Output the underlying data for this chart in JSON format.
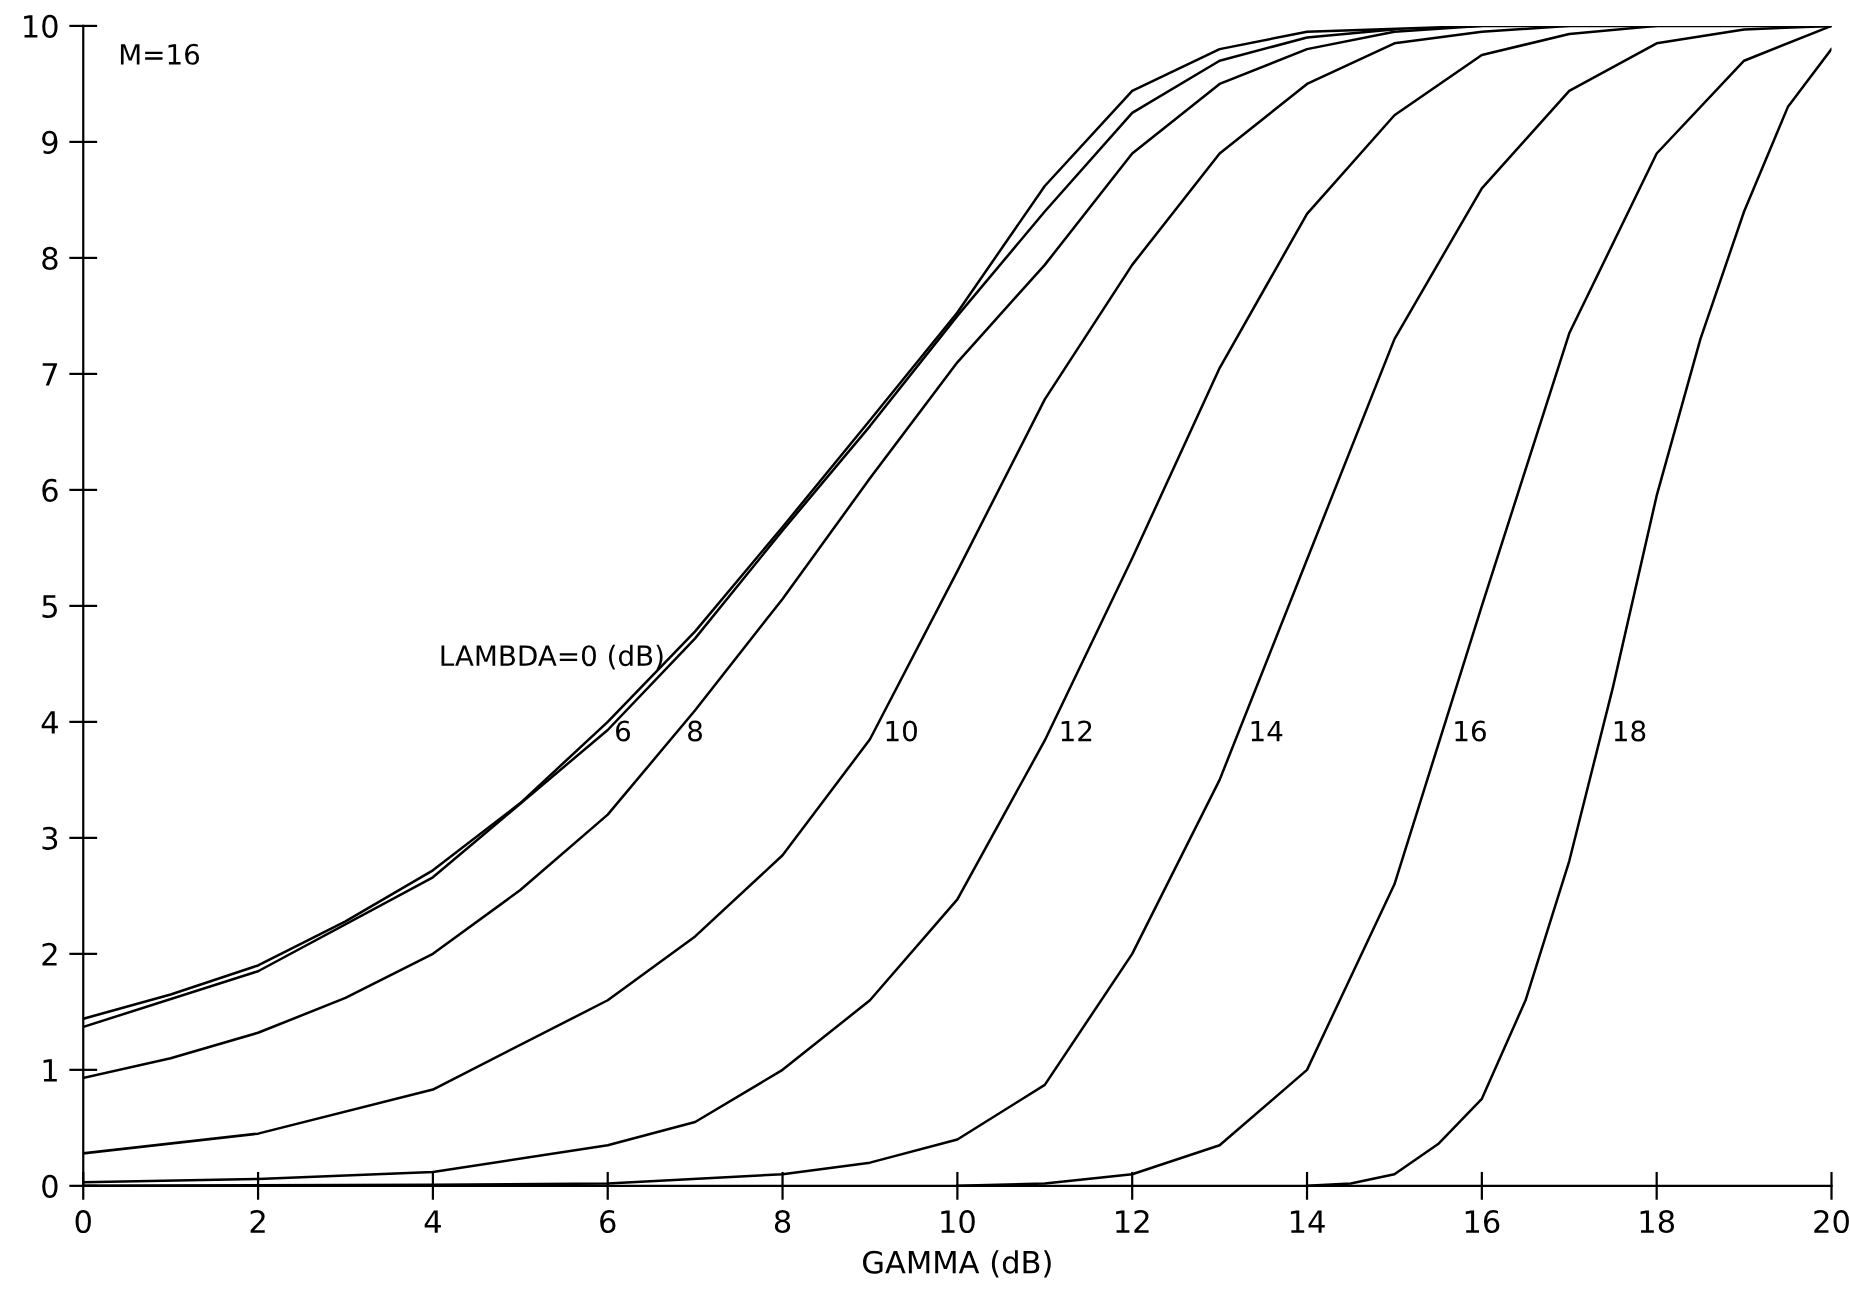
{
  "chart_data": {
    "type": "line",
    "xlabel": "GAMMA (dB)",
    "xlim": [
      0,
      20
    ],
    "ylim": [
      0,
      10
    ],
    "xticks": [
      0,
      2,
      4,
      6,
      8,
      10,
      12,
      14,
      16,
      18,
      20
    ],
    "yticks": [
      0,
      1,
      2,
      3,
      4,
      5,
      6,
      7,
      8,
      9,
      10
    ],
    "grid": false,
    "legend": false,
    "marker": "none",
    "line_style": "solid",
    "series": [
      {
        "name": "LAMBDA=0 (dB)",
        "color": "#000000",
        "x": [
          0,
          1,
          2,
          3,
          4,
          5,
          6,
          7,
          8,
          9,
          10,
          11,
          12,
          13,
          14,
          16,
          20
        ],
        "values": [
          1.44,
          1.65,
          1.9,
          2.28,
          2.72,
          3.3,
          4.0,
          4.78,
          5.68,
          6.6,
          7.53,
          8.62,
          9.44,
          9.8,
          9.95,
          10,
          10
        ]
      },
      {
        "name": "6",
        "color": "#000000",
        "x": [
          0,
          2,
          4,
          6,
          7,
          8,
          9,
          10,
          11,
          12,
          13,
          14,
          15
        ],
        "values": [
          1.37,
          1.85,
          2.66,
          3.93,
          4.72,
          5.65,
          6.55,
          7.5,
          8.4,
          9.25,
          9.7,
          9.9,
          9.97
        ]
      },
      {
        "name": "8",
        "color": "#000000",
        "x": [
          0,
          1,
          2,
          3,
          4,
          5,
          6,
          7,
          8,
          9,
          10,
          11,
          12,
          13,
          14,
          15,
          16
        ],
        "values": [
          0.93,
          1.1,
          1.32,
          1.62,
          2.0,
          2.55,
          3.2,
          4.1,
          5.06,
          6.1,
          7.1,
          7.94,
          8.9,
          9.5,
          9.8,
          9.95,
          10
        ]
      },
      {
        "name": "10",
        "color": "#000000",
        "x": [
          0,
          2,
          4,
          6,
          7,
          8,
          9,
          10,
          11,
          12,
          13,
          14,
          15,
          16,
          17
        ],
        "values": [
          0.28,
          0.45,
          0.83,
          1.6,
          2.15,
          2.85,
          3.85,
          5.3,
          6.78,
          7.94,
          8.9,
          9.5,
          9.85,
          9.95,
          10
        ]
      },
      {
        "name": "12",
        "color": "#000000",
        "x": [
          0,
          2,
          4,
          6,
          7,
          8,
          9,
          10,
          11,
          12,
          13,
          14,
          15,
          16,
          17,
          18
        ],
        "values": [
          0.03,
          0.06,
          0.12,
          0.35,
          0.55,
          1.0,
          1.6,
          2.47,
          3.84,
          5.41,
          7.05,
          8.38,
          9.23,
          9.75,
          9.93,
          10
        ]
      },
      {
        "name": "14",
        "color": "#000000",
        "x": [
          0,
          4,
          6,
          8,
          9,
          10,
          11,
          12,
          13,
          14,
          15,
          16,
          17,
          18,
          19,
          20
        ],
        "values": [
          0,
          0.01,
          0.02,
          0.1,
          0.2,
          0.4,
          0.87,
          2.0,
          3.5,
          5.4,
          7.3,
          8.6,
          9.44,
          9.85,
          9.97,
          10
        ]
      },
      {
        "name": "16",
        "color": "#000000",
        "x": [
          10,
          11,
          12,
          13,
          14,
          15,
          16,
          17,
          18,
          19,
          20
        ],
        "values": [
          0,
          0.02,
          0.1,
          0.35,
          1.0,
          2.6,
          5.0,
          7.35,
          8.9,
          9.7,
          10
        ]
      },
      {
        "name": "18",
        "color": "#000000",
        "x": [
          14,
          14.5,
          15,
          15.5,
          16,
          16.5,
          17,
          17.5,
          18,
          18.5,
          19,
          19.5,
          20
        ],
        "values": [
          0,
          0.02,
          0.1,
          0.36,
          0.75,
          1.6,
          2.8,
          4.3,
          5.95,
          7.3,
          8.4,
          9.3,
          9.8
        ]
      }
    ],
    "annotations": [
      "M=16"
    ]
  }
}
